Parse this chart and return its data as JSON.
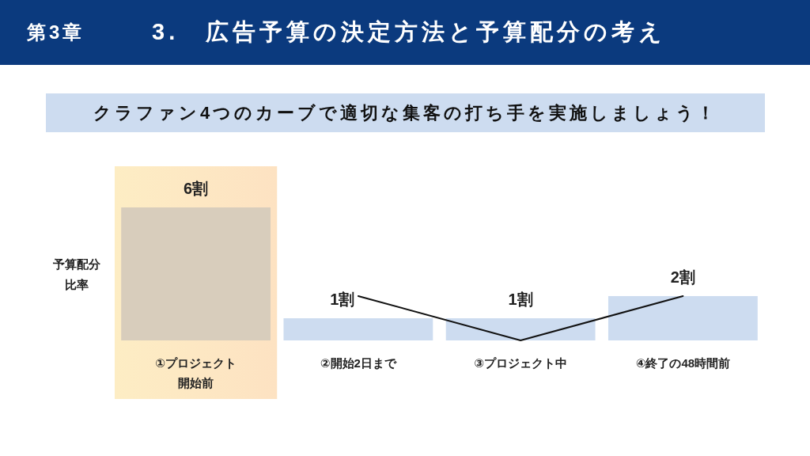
{
  "chart_data": {
    "type": "bar",
    "title": "3.　広告予算の決定方法と予算配分の考え",
    "subtitle": "クラファン4つのカーブで適切な集客の打ち手を実施しましょう！",
    "annotations": [
      "第3章"
    ],
    "ylabel": "予算配分比率",
    "categories": [
      "①プロジェクト開始前",
      "②開始2日まで",
      "③プロジェクト中",
      "④終了の48時間前"
    ],
    "series": [
      {
        "colors": [
          "#d8cdbc",
          "#cddcf0",
          "#cddcf0",
          "#cddcf0"
        ],
        "values": [
          6,
          1,
          1,
          2
        ],
        "value_labels": [
          "6割",
          "1割",
          "1割",
          "2割"
        ]
      },
      {
        "type": "line",
        "color": "#111111",
        "values": [
          null,
          2,
          0,
          2
        ]
      }
    ],
    "bands": [
      {
        "axis": "x",
        "from": "①プロジェクト開始前",
        "to": "①プロジェクト開始前",
        "color": "#fde2c2"
      }
    ],
    "marker": "none",
    "line_style": "solid",
    "grid": false,
    "tick_labels": "x"
  }
}
